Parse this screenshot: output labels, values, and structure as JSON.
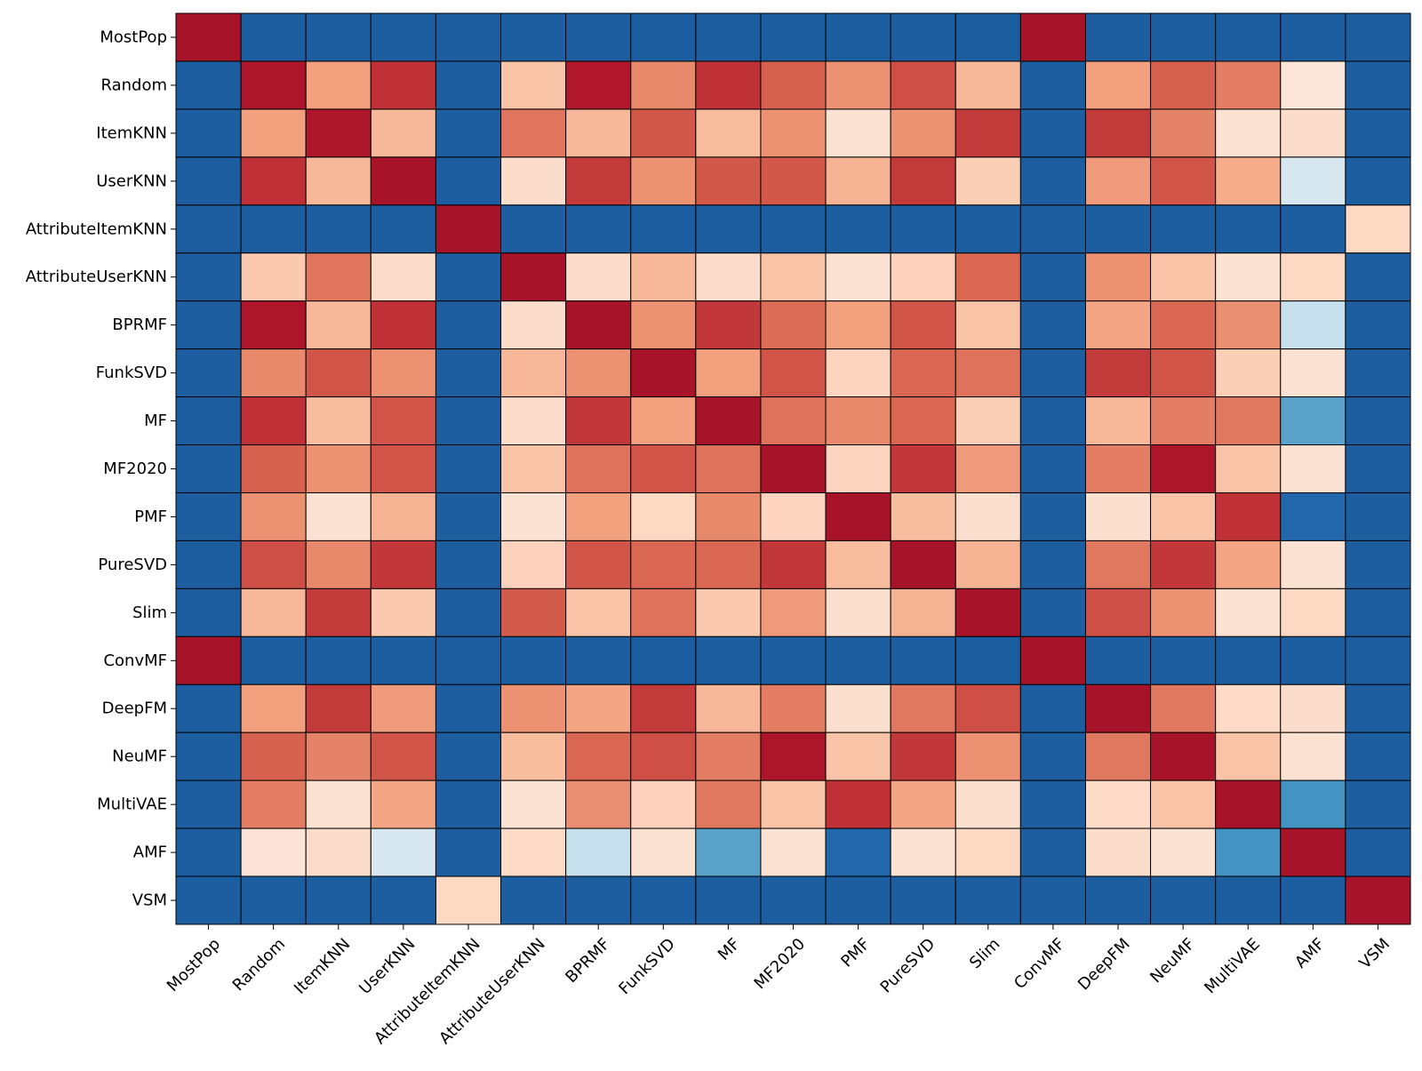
{
  "chart_data": {
    "type": "heatmap",
    "title": "",
    "xlabel": "",
    "ylabel": "",
    "colormap": "RdBu_r",
    "value_range": [
      -1,
      1
    ],
    "legend": "none",
    "grid": true,
    "cell_edge_color": "#000000",
    "x_labels": [
      "MostPop",
      "Random",
      "ItemKNN",
      "UserKNN",
      "AttributeItemKNN",
      "AttributeUserKNN",
      "BPRMF",
      "FunkSVD",
      "MF",
      "MF2020",
      "PMF",
      "PureSVD",
      "Slim",
      "ConvMF",
      "DeepFM",
      "NeuMF",
      "MultiVAE",
      "AMF",
      "VSM"
    ],
    "y_labels": [
      "MostPop",
      "Random",
      "ItemKNN",
      "UserKNN",
      "AttributeItemKNN",
      "AttributeUserKNN",
      "BPRMF",
      "FunkSVD",
      "MF",
      "MF2020",
      "PMF",
      "PureSVD",
      "Slim",
      "ConvMF",
      "DeepFM",
      "NeuMF",
      "MultiVAE",
      "AMF",
      "VSM"
    ],
    "values": [
      [
        1.0,
        -1.0,
        -1.0,
        -1.0,
        -1.0,
        -1.0,
        -1.0,
        -1.0,
        -1.0,
        -1.0,
        -1.0,
        -1.0,
        -1.0,
        1.0,
        -1.0,
        -1.0,
        -1.0,
        -1.0,
        -1.0
      ],
      [
        -1.0,
        0.98,
        0.5,
        0.88,
        -1.0,
        0.35,
        0.97,
        0.58,
        0.88,
        0.72,
        0.55,
        0.78,
        0.4,
        -1.0,
        0.5,
        0.72,
        0.62,
        0.15,
        -1.0
      ],
      [
        -1.0,
        0.5,
        0.98,
        0.4,
        -1.0,
        0.65,
        0.4,
        0.75,
        0.38,
        0.55,
        0.18,
        0.55,
        0.85,
        -1.0,
        0.85,
        0.6,
        0.18,
        0.22,
        -1.0
      ],
      [
        -1.0,
        0.88,
        0.4,
        1.0,
        -1.0,
        0.22,
        0.85,
        0.55,
        0.75,
        0.75,
        0.42,
        0.85,
        0.3,
        -1.0,
        0.52,
        0.76,
        0.45,
        -0.2,
        -1.0
      ],
      [
        -1.0,
        -1.0,
        -1.0,
        -1.0,
        1.0,
        -1.0,
        -1.0,
        -1.0,
        -1.0,
        -1.0,
        -1.0,
        -1.0,
        -1.0,
        -1.0,
        -1.0,
        -1.0,
        -1.0,
        -1.0,
        0.25
      ],
      [
        -1.0,
        0.32,
        0.65,
        0.22,
        -1.0,
        1.0,
        0.22,
        0.4,
        0.22,
        0.35,
        0.18,
        0.28,
        0.7,
        -1.0,
        0.55,
        0.35,
        0.18,
        0.25,
        -1.0
      ],
      [
        -1.0,
        0.98,
        0.4,
        0.88,
        -1.0,
        0.22,
        1.0,
        0.55,
        0.86,
        0.68,
        0.5,
        0.76,
        0.35,
        -1.0,
        0.48,
        0.7,
        0.56,
        -0.28,
        -1.0
      ],
      [
        -1.0,
        0.58,
        0.76,
        0.55,
        -1.0,
        0.4,
        0.55,
        1.0,
        0.5,
        0.76,
        0.27,
        0.7,
        0.66,
        -1.0,
        0.85,
        0.76,
        0.3,
        0.18,
        -1.0
      ],
      [
        -1.0,
        0.88,
        0.38,
        0.76,
        -1.0,
        0.22,
        0.86,
        0.5,
        1.0,
        0.66,
        0.58,
        0.7,
        0.3,
        -1.0,
        0.4,
        0.62,
        0.64,
        -0.65,
        -1.0
      ],
      [
        -1.0,
        0.72,
        0.55,
        0.76,
        -1.0,
        0.35,
        0.66,
        0.76,
        0.66,
        1.0,
        0.27,
        0.86,
        0.52,
        -1.0,
        0.62,
        0.98,
        0.35,
        0.18,
        -1.0
      ],
      [
        -1.0,
        0.55,
        0.18,
        0.42,
        -1.0,
        0.18,
        0.5,
        0.25,
        0.58,
        0.27,
        1.0,
        0.38,
        0.2,
        -1.0,
        0.2,
        0.35,
        0.88,
        -0.96,
        -1.0
      ],
      [
        -1.0,
        0.78,
        0.58,
        0.86,
        -1.0,
        0.28,
        0.76,
        0.7,
        0.7,
        0.86,
        0.38,
        1.0,
        0.42,
        -1.0,
        0.64,
        0.86,
        0.48,
        0.18,
        -1.0
      ],
      [
        -1.0,
        0.4,
        0.85,
        0.32,
        -1.0,
        0.74,
        0.35,
        0.66,
        0.32,
        0.52,
        0.2,
        0.42,
        1.0,
        -1.0,
        0.78,
        0.55,
        0.18,
        0.25,
        -1.0
      ],
      [
        1.0,
        -1.0,
        -1.0,
        -1.0,
        -1.0,
        -1.0,
        -1.0,
        -1.0,
        -1.0,
        -1.0,
        -1.0,
        -1.0,
        -1.0,
        1.0,
        -1.0,
        -1.0,
        -1.0,
        -1.0,
        -1.0
      ],
      [
        -1.0,
        0.5,
        0.85,
        0.52,
        -1.0,
        0.55,
        0.48,
        0.85,
        0.4,
        0.62,
        0.2,
        0.64,
        0.78,
        -1.0,
        1.0,
        0.64,
        0.24,
        0.22,
        -1.0
      ],
      [
        -1.0,
        0.72,
        0.6,
        0.76,
        -1.0,
        0.38,
        0.7,
        0.78,
        0.62,
        0.98,
        0.35,
        0.86,
        0.55,
        -1.0,
        0.64,
        1.0,
        0.35,
        0.18,
        -1.0
      ],
      [
        -1.0,
        0.62,
        0.18,
        0.48,
        -1.0,
        0.18,
        0.56,
        0.28,
        0.64,
        0.35,
        0.88,
        0.48,
        0.2,
        -1.0,
        0.24,
        0.35,
        1.0,
        -0.72,
        -1.0
      ],
      [
        -1.0,
        0.16,
        0.22,
        -0.2,
        -1.0,
        0.24,
        -0.28,
        0.18,
        -0.65,
        0.18,
        -0.96,
        0.18,
        0.25,
        -1.0,
        0.22,
        0.18,
        -0.72,
        1.0,
        -1.0
      ],
      [
        -1.0,
        -1.0,
        -1.0,
        -1.0,
        0.25,
        -1.0,
        -1.0,
        -1.0,
        -1.0,
        -1.0,
        -1.0,
        -1.0,
        -1.0,
        -1.0,
        -1.0,
        -1.0,
        -1.0,
        -1.0,
        1.0
      ]
    ]
  }
}
